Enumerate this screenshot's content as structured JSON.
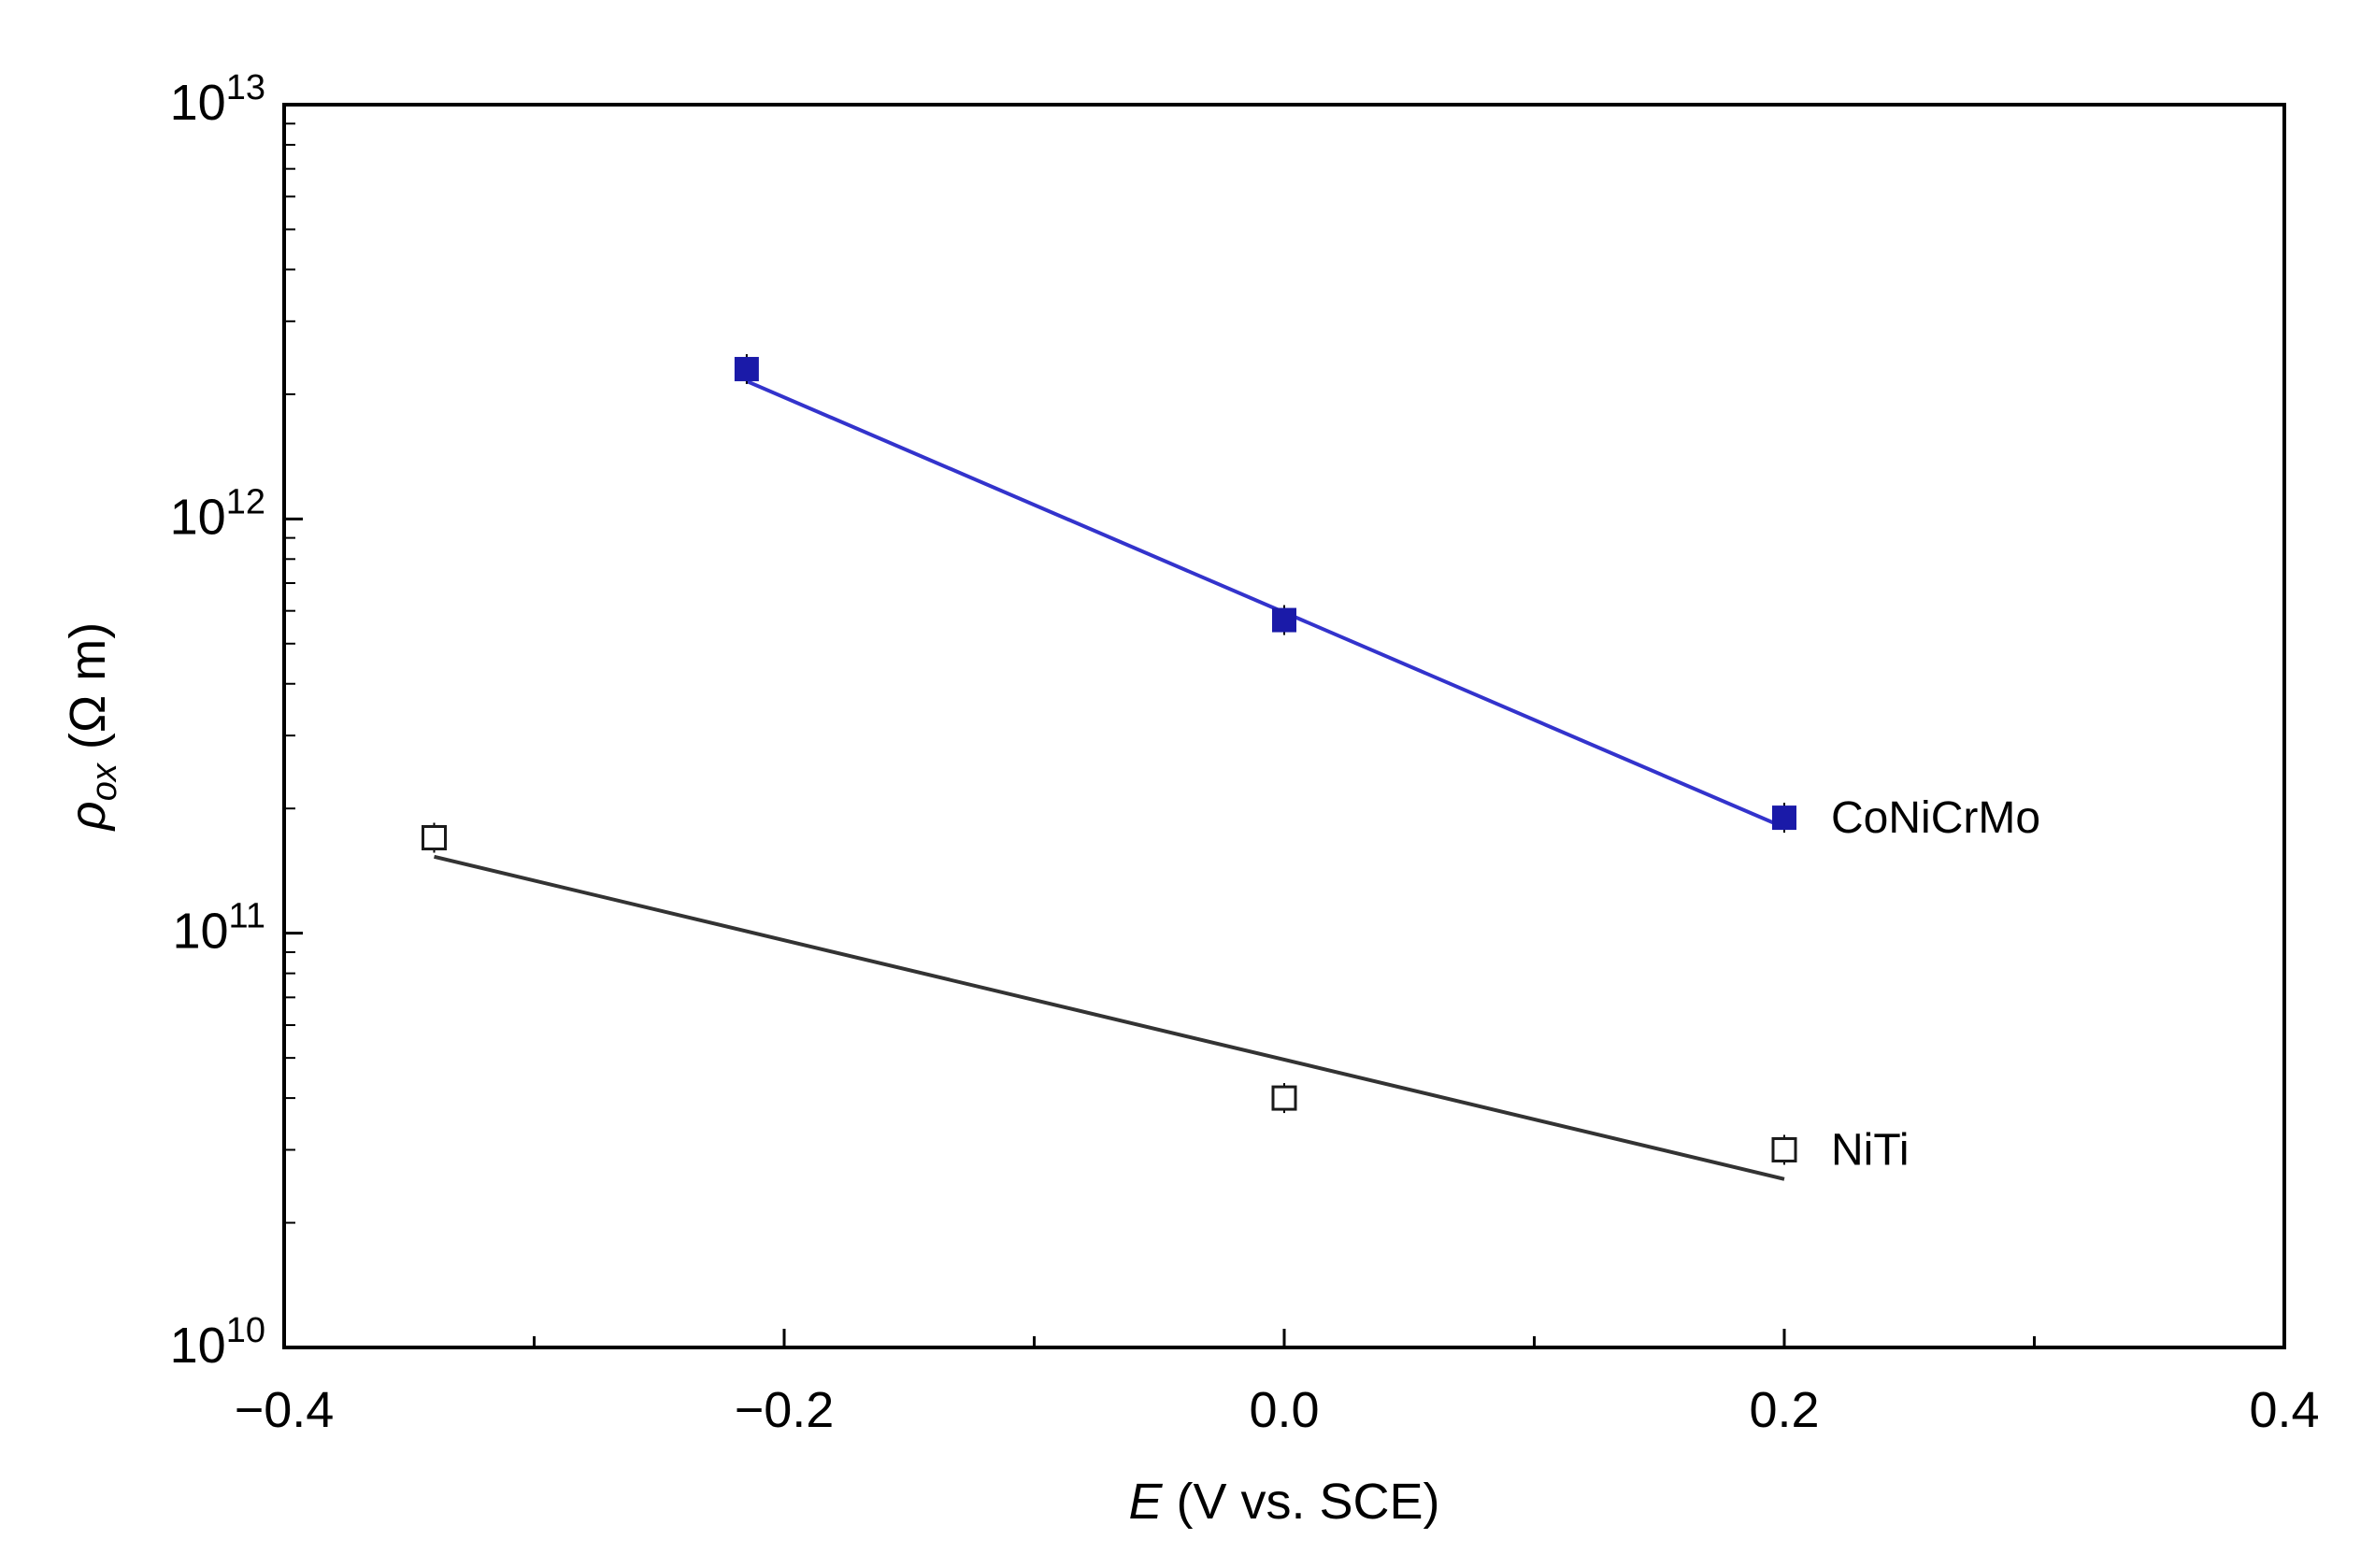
{
  "chart_data": {
    "type": "scatter",
    "title": "",
    "xlabel": "E (V vs. SCE)",
    "xlabel_symbol": "E",
    "xlabel_rest": " (V vs. SCE)",
    "ylabel": "ρox (Ω m)",
    "ylabel_symbol": "ρ",
    "ylabel_sub": "ox",
    "ylabel_rest": " (Ω m)",
    "xlim": [
      -0.4,
      0.4
    ],
    "ylim": [
      10000000000,
      10000000000000
    ],
    "yscale": "log",
    "x_ticks": [
      {
        "value": -0.4,
        "label": "−0.4"
      },
      {
        "value": -0.2,
        "label": "−0.2"
      },
      {
        "value": 0.0,
        "label": "0.0"
      },
      {
        "value": 0.2,
        "label": "0.2"
      },
      {
        "value": 0.4,
        "label": "0.4"
      }
    ],
    "x_minor_ticks": [
      -0.3,
      -0.1,
      0.1,
      0.3
    ],
    "y_ticks": [
      {
        "value": 10000000000,
        "base": "10",
        "exp": "10"
      },
      {
        "value": 100000000000,
        "base": "10",
        "exp": "11"
      },
      {
        "value": 1000000000000,
        "base": "10",
        "exp": "12"
      },
      {
        "value": 10000000000000,
        "base": "10",
        "exp": "13"
      }
    ],
    "grid": false,
    "series": [
      {
        "name": "CoNiCrMo",
        "marker": "filled-square",
        "color": "#1a1aa8",
        "line_color": "#3333cc",
        "points": [
          {
            "x": -0.215,
            "y": 2300000000000
          },
          {
            "x": 0.0,
            "y": 570000000000
          },
          {
            "x": 0.2,
            "y": 190000000000
          }
        ],
        "fit": [
          {
            "x": -0.215,
            "y": 2150000000000
          },
          {
            "x": 0.2,
            "y": 180000000000
          }
        ]
      },
      {
        "name": "NiTi",
        "marker": "open-square",
        "color": "#1a1a1a",
        "line_color": "#333333",
        "points": [
          {
            "x": -0.34,
            "y": 170000000000
          },
          {
            "x": 0.0,
            "y": 40000000000
          },
          {
            "x": 0.2,
            "y": 30000000000
          }
        ],
        "fit": [
          {
            "x": -0.34,
            "y": 153000000000
          },
          {
            "x": 0.2,
            "y": 25500000000
          }
        ]
      }
    ]
  }
}
